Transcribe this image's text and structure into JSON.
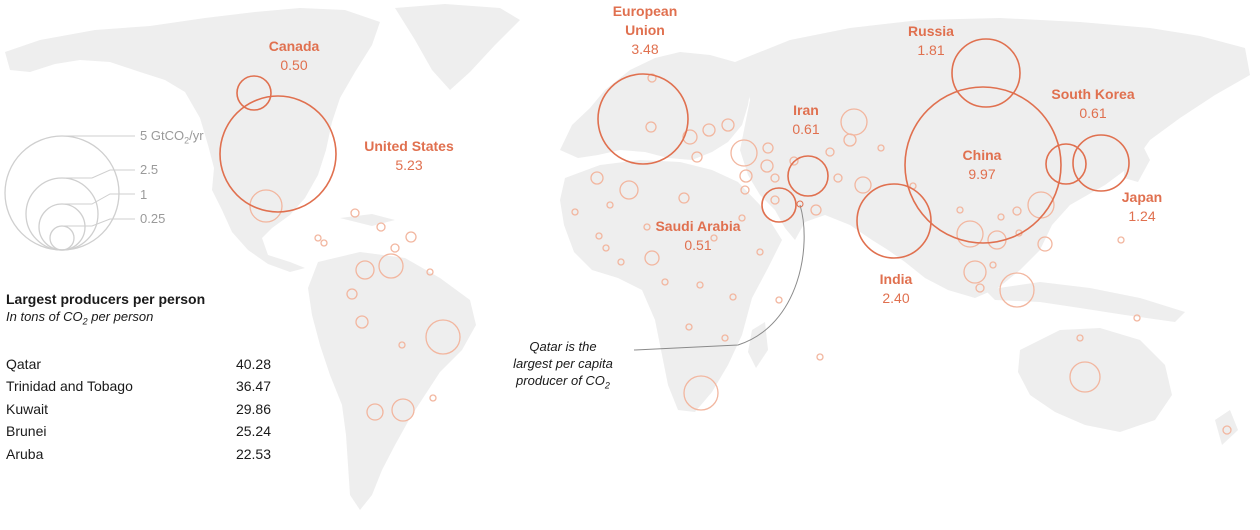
{
  "colors": {
    "land": "#eeeeee",
    "accent": "#e0704f",
    "accent_light": "#f2b69f",
    "scale_stroke": "#cfcfcf",
    "scale_text": "#9a9a9a"
  },
  "scale_legend": {
    "unit_prefix": "5 GtCO",
    "unit_sub": "2",
    "unit_suffix": "/yr",
    "steps": [
      "2.5",
      "1",
      "0.25"
    ]
  },
  "labeled_producers": [
    {
      "id": "canada",
      "name": "Canada",
      "value": "0.50"
    },
    {
      "id": "united-states",
      "name": "United States",
      "value": "5.23"
    },
    {
      "id": "european-union",
      "name_line1": "European",
      "name_line2": "Union",
      "value": "3.48"
    },
    {
      "id": "russia",
      "name": "Russia",
      "value": "1.81"
    },
    {
      "id": "iran",
      "name": "Iran",
      "value": "0.61"
    },
    {
      "id": "south-korea",
      "name": "South Korea",
      "value": "0.61"
    },
    {
      "id": "china",
      "name": "China",
      "value": "9.97"
    },
    {
      "id": "japan",
      "name": "Japan",
      "value": "1.24"
    },
    {
      "id": "saudi-arabia",
      "name": "Saudi Arabia",
      "value": "0.51"
    },
    {
      "id": "india",
      "name": "India",
      "value": "2.40"
    }
  ],
  "per_person_table": {
    "title": "Largest producers per person",
    "subtitle_prefix": "In tons of CO",
    "subtitle_sub": "2",
    "subtitle_suffix": " per person",
    "rows": [
      {
        "country": "Qatar",
        "value": "40.28"
      },
      {
        "country": "Trinidad and Tobago",
        "value": "36.47"
      },
      {
        "country": "Kuwait",
        "value": "29.86"
      },
      {
        "country": "Brunei",
        "value": "25.24"
      },
      {
        "country": "Aruba",
        "value": "22.53"
      }
    ]
  },
  "annotation": {
    "line1": "Qatar is the",
    "line2": "largest per capita",
    "line3_prefix": "producer of CO",
    "line3_sub": "2"
  }
}
